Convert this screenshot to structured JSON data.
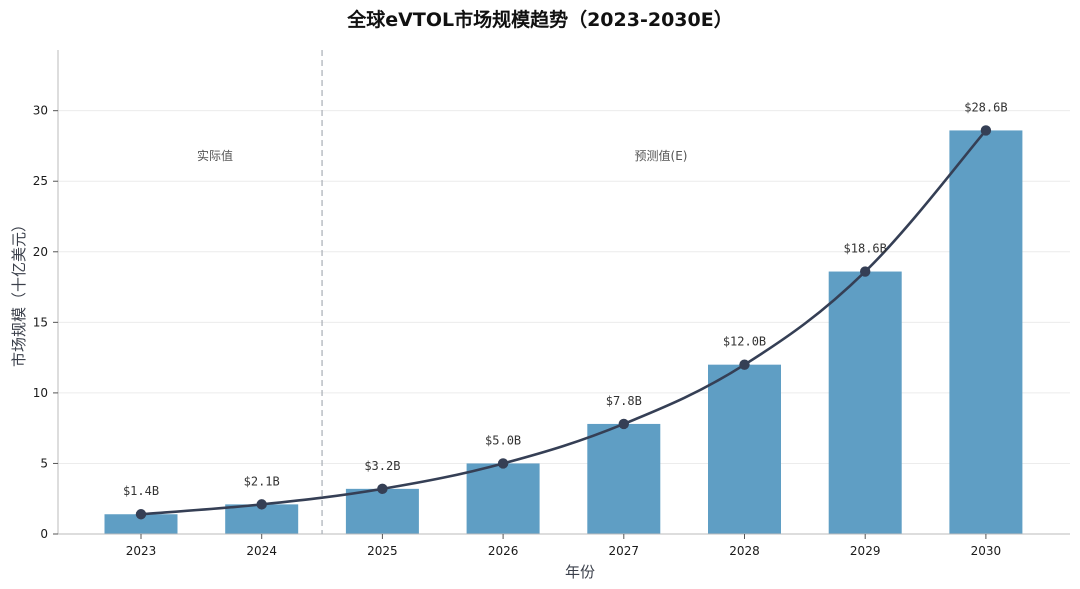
{
  "chart_data": {
    "type": "bar",
    "title": "全球eVTOL市场规模趋势（2023-2030E）",
    "xlabel": "年份",
    "ylabel": "市场规模（十亿美元）",
    "categories": [
      "2023",
      "2024",
      "2025",
      "2026",
      "2027",
      "2028",
      "2029",
      "2030"
    ],
    "values": [
      1.4,
      2.1,
      3.2,
      5.0,
      7.8,
      12.0,
      18.6,
      28.6
    ],
    "value_labels": [
      "$1.4B",
      "$2.1B",
      "$3.2B",
      "$5.0B",
      "$7.8B",
      "$12.0B",
      "$18.6B",
      "$28.6B"
    ],
    "overlay_line": {
      "type": "line",
      "values": [
        1.4,
        2.1,
        3.2,
        5.0,
        7.8,
        12.0,
        18.6,
        28.6
      ]
    },
    "ylim": [
      0,
      34.3
    ],
    "yticks": [
      0,
      5,
      10,
      15,
      20,
      25,
      30
    ],
    "grid": "horizontal",
    "regions": [
      {
        "label": "实际值",
        "categories": [
          "2023",
          "2024"
        ]
      },
      {
        "label": "预测值(E)",
        "categories": [
          "2025",
          "2026",
          "2027",
          "2028",
          "2029",
          "2030"
        ]
      }
    ],
    "divider_between": [
      "2024",
      "2025"
    ]
  },
  "colors": {
    "bar": "#5f9ec4",
    "line": "#353f55",
    "marker": "#353f55",
    "grid": "#ececec",
    "axis": "#bbbbbb",
    "divider": "#a8adb5"
  }
}
